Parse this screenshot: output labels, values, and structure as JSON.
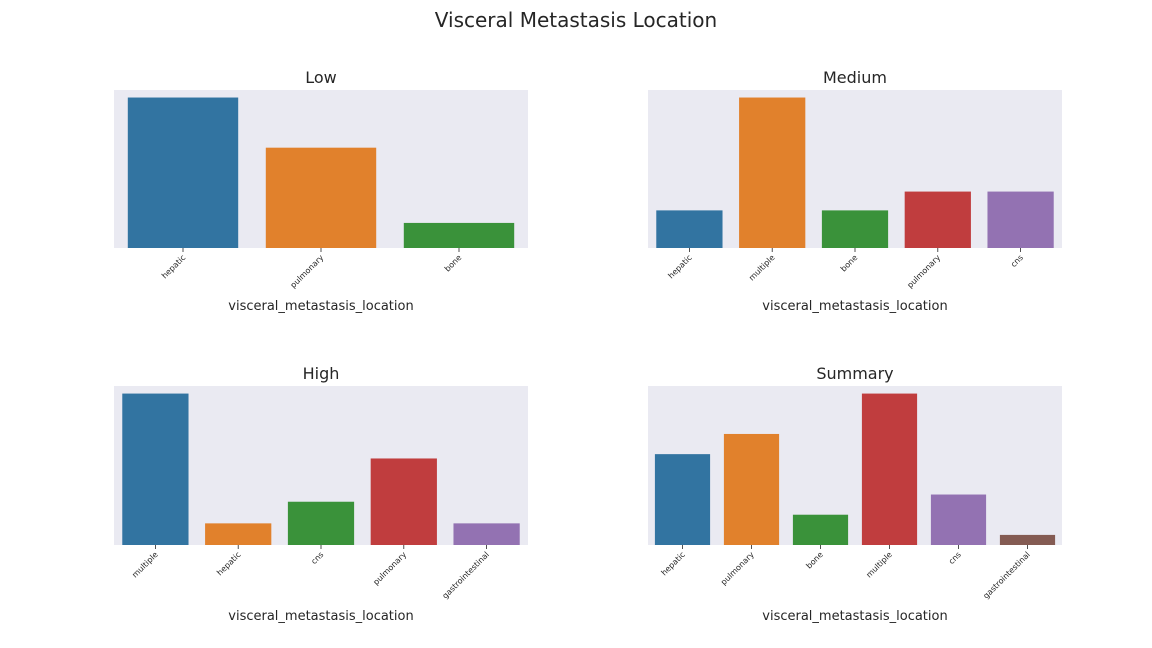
{
  "title": "Visceral Metastasis Location",
  "colors": [
    "#3274a1",
    "#e1812c",
    "#3a923a",
    "#c03d3e",
    "#9372b2",
    "#845b53"
  ],
  "panel_bg": "#eaeaf2",
  "chart_data": [
    {
      "type": "bar",
      "title": "Low",
      "xlabel": "visceral_metastasis_location",
      "categories": [
        "hepatic",
        "pulmonary",
        "bone"
      ],
      "values": [
        6,
        4,
        1
      ],
      "ylim": [
        0,
        6.3
      ]
    },
    {
      "type": "bar",
      "title": "Medium",
      "xlabel": "visceral_metastasis_location",
      "categories": [
        "hepatic",
        "multiple",
        "bone",
        "pulmonary",
        "cns"
      ],
      "values": [
        2,
        8,
        2,
        3,
        3
      ],
      "ylim": [
        0,
        8.4
      ]
    },
    {
      "type": "bar",
      "title": "High",
      "xlabel": "visceral_metastasis_location",
      "categories": [
        "multiple",
        "hepatic",
        "cns",
        "pulmonary",
        "gastrointestinal"
      ],
      "values": [
        7,
        1,
        2,
        4,
        1
      ],
      "ylim": [
        0,
        7.35
      ]
    },
    {
      "type": "bar",
      "title": "Summary",
      "xlabel": "visceral_metastasis_location",
      "categories": [
        "hepatic",
        "pulmonary",
        "bone",
        "multiple",
        "cns",
        "gastrointestinal"
      ],
      "values": [
        9,
        11,
        3,
        15,
        5,
        1
      ],
      "ylim": [
        0,
        15.75
      ]
    }
  ]
}
